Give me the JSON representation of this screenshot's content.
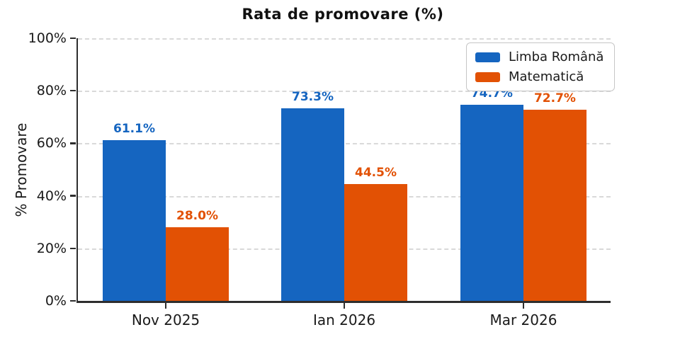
{
  "chart_data": {
    "type": "bar",
    "title": "Rata de promovare (%)",
    "ylabel": "% Promovare",
    "xlabel": "",
    "categories": [
      "Nov 2025",
      "Ian 2026",
      "Mar 2026"
    ],
    "series": [
      {
        "name": "Limba Română",
        "color": "#1565c0",
        "values": [
          61.1,
          73.3,
          74.7
        ],
        "labels": [
          "61.1%",
          "73.3%",
          "74.7%"
        ]
      },
      {
        "name": "Matematică",
        "color": "#e25104",
        "values": [
          28.0,
          44.5,
          72.7
        ],
        "labels": [
          "28.0%",
          "44.5%",
          "72.7%"
        ]
      }
    ],
    "ylim": [
      0,
      100
    ],
    "yticks": [
      {
        "label": "0%",
        "value": 0
      },
      {
        "label": "20%",
        "value": 20
      },
      {
        "label": "40%",
        "value": 40
      },
      {
        "label": "60%",
        "value": 60
      },
      {
        "label": "80%",
        "value": 80
      },
      {
        "label": "100%",
        "value": 100
      }
    ],
    "grid": "horizontal-dashed",
    "gridline_color": "#d9d9d9",
    "legend_position": "upper-right",
    "background_color": "#ffffff",
    "axis_text_color": "#1a1a1a"
  }
}
